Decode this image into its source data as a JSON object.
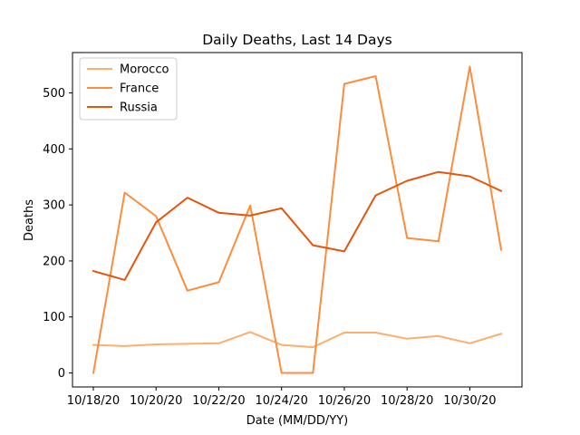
{
  "chart_data": {
    "type": "line",
    "title": "Daily Deaths, Last 14 Days",
    "xlabel": "Date (MM/DD/YY)",
    "ylabel": "Deaths",
    "x": [
      "10/18/20",
      "10/19/20",
      "10/20/20",
      "10/21/20",
      "10/22/20",
      "10/23/20",
      "10/24/20",
      "10/25/20",
      "10/26/20",
      "10/27/20",
      "10/28/20",
      "10/29/20",
      "10/30/20",
      "10/31/20"
    ],
    "xticks": [
      "10/18/20",
      "10/20/20",
      "10/22/20",
      "10/24/20",
      "10/26/20",
      "10/28/20",
      "10/30/20"
    ],
    "yticks": [
      0,
      100,
      200,
      300,
      400,
      500
    ],
    "ylim": [
      -25,
      572
    ],
    "grid": false,
    "legend_position": "upper-left",
    "series": [
      {
        "name": "Morocco",
        "color": "#fdae6b",
        "values": [
          50,
          48,
          51,
          52,
          53,
          73,
          50,
          46,
          72,
          72,
          61,
          66,
          53,
          70
        ]
      },
      {
        "name": "France",
        "color": "#fd8d3c",
        "values": [
          0,
          322,
          280,
          147,
          162,
          299,
          0,
          0,
          516,
          530,
          241,
          235,
          547,
          220
        ]
      },
      {
        "name": "Russia",
        "color": "#e6550d",
        "values": [
          182,
          166,
          269,
          313,
          286,
          281,
          294,
          228,
          217,
          317,
          343,
          359,
          351,
          325
        ]
      }
    ]
  }
}
